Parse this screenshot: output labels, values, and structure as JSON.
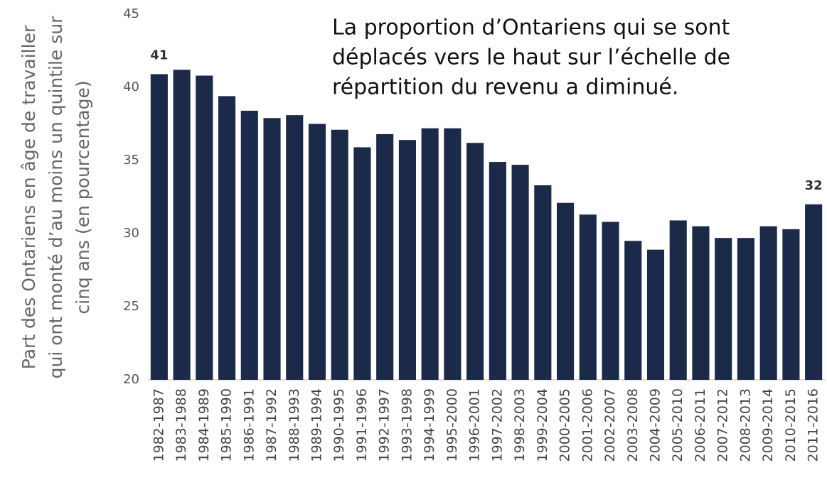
{
  "chart_data": {
    "type": "bar",
    "annotation": [
      "La proportion d’Ontariens qui se sont",
      "déplacés vers le haut sur l’échelle de",
      "répartition du revenu a diminué."
    ],
    "y_label": [
      "Part des Ontariens en âge de travailler",
      "qui ont monté d’au moins un quintile sur",
      "cinq ans (en pourcentage)"
    ],
    "categories": [
      "1982-1987",
      "1983-1988",
      "1984-1989",
      "1985-1990",
      "1986-1991",
      "1987-1992",
      "1988-1993",
      "1989-1994",
      "1990-1995",
      "1991-1996",
      "1992-1997",
      "1993-1998",
      "1994-1999",
      "1995-2000",
      "1996-2001",
      "1997-2002",
      "1998-2003",
      "1999-2004",
      "2000-2005",
      "2001-2006",
      "2002-2007",
      "2003-2008",
      "2004-2009",
      "2005-2010",
      "2006-2011",
      "2007-2012",
      "2008-2013",
      "2009-2014",
      "2010-2015",
      "2011-2016"
    ],
    "values": [
      40.9,
      41.2,
      40.8,
      39.4,
      38.4,
      37.9,
      38.1,
      37.5,
      37.1,
      35.9,
      36.8,
      36.4,
      37.2,
      37.2,
      36.2,
      34.9,
      34.7,
      33.3,
      32.1,
      31.3,
      30.8,
      29.5,
      28.9,
      30.9,
      30.5,
      29.7,
      29.7,
      30.5,
      30.3,
      32.0
    ],
    "value_labels": [
      "41",
      null,
      null,
      null,
      null,
      null,
      null,
      null,
      null,
      null,
      null,
      null,
      null,
      null,
      null,
      null,
      null,
      null,
      null,
      null,
      null,
      null,
      null,
      null,
      null,
      null,
      null,
      null,
      null,
      "32"
    ],
    "color": "#1c2a4a",
    "ylim": [
      20,
      45
    ],
    "yticks": [
      20,
      25,
      30,
      35,
      40,
      45
    ],
    "grid": false
  }
}
